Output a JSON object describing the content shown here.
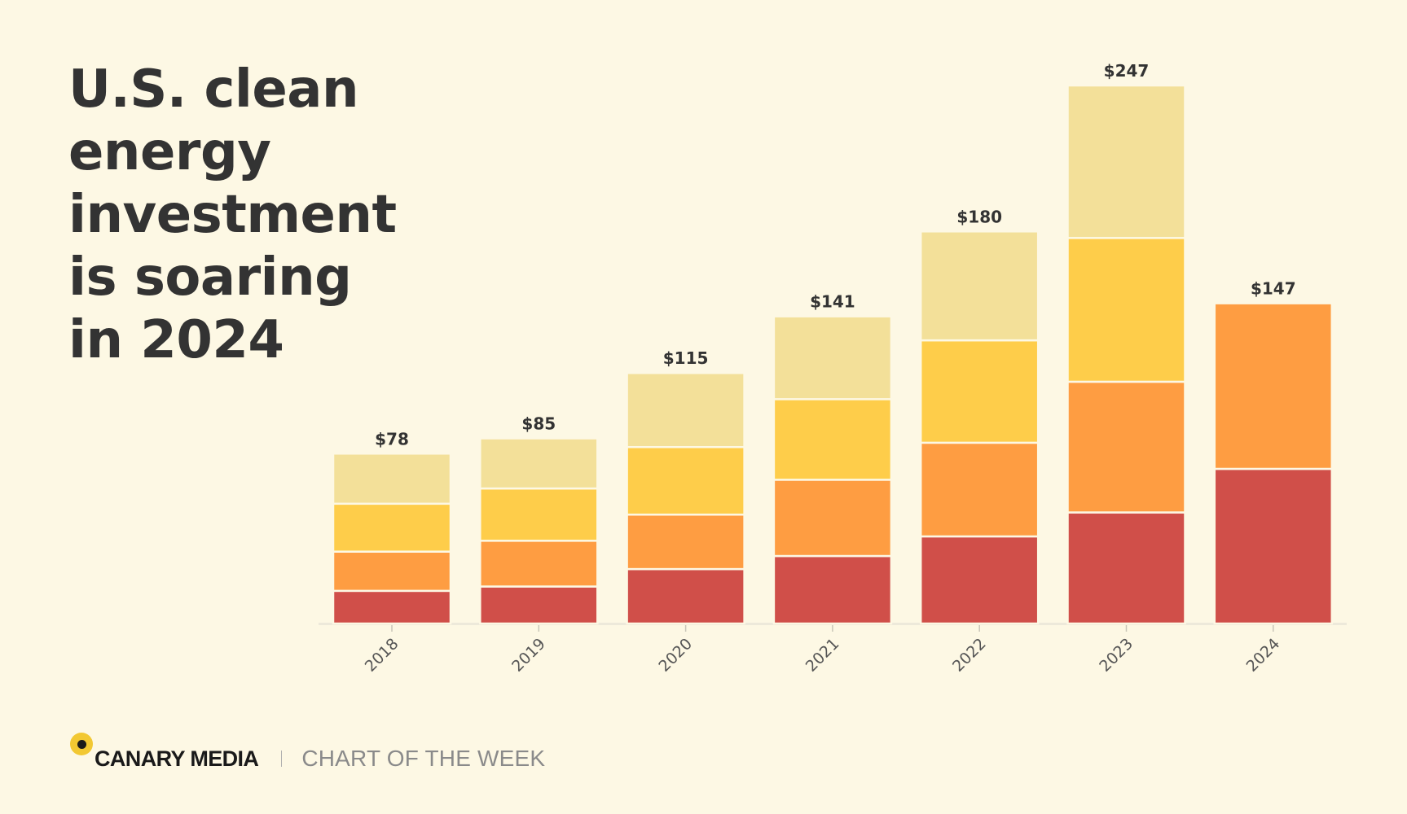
{
  "title_lines": [
    "U.S. clean",
    "energy",
    "investment",
    "is soaring",
    "in 2024"
  ],
  "footer": {
    "brand": "CANARY MEDIA",
    "kicker": "CHART OF THE WEEK",
    "logo_icon": "canary-dot-icon"
  },
  "colors": {
    "background": "#fdf8e4",
    "segments": [
      "#d04f49",
      "#fe9d42",
      "#fecd4a",
      "#f3e099"
    ]
  },
  "chart_data": {
    "type": "bar",
    "stacked": true,
    "categories": [
      "2018",
      "2019",
      "2020",
      "2021",
      "2022",
      "2023",
      "2024"
    ],
    "totals": [
      78,
      85,
      115,
      141,
      180,
      247,
      147
    ],
    "total_labels": [
      "$78",
      "$85",
      "$115",
      "$141",
      "$180",
      "$247",
      "$147"
    ],
    "series": [
      {
        "color": "#d04f49",
        "values": [
          15,
          17,
          25,
          31,
          40,
          51,
          71
        ]
      },
      {
        "color": "#fe9d42",
        "values": [
          18,
          21,
          25,
          35,
          43,
          60,
          76
        ]
      },
      {
        "color": "#fecd4a",
        "values": [
          22,
          24,
          31,
          37,
          47,
          66,
          0
        ]
      },
      {
        "color": "#f3e099",
        "values": [
          23,
          23,
          34,
          38,
          50,
          70,
          0
        ]
      }
    ],
    "ylim": [
      0,
      247
    ],
    "grid": false,
    "legend": "none"
  }
}
